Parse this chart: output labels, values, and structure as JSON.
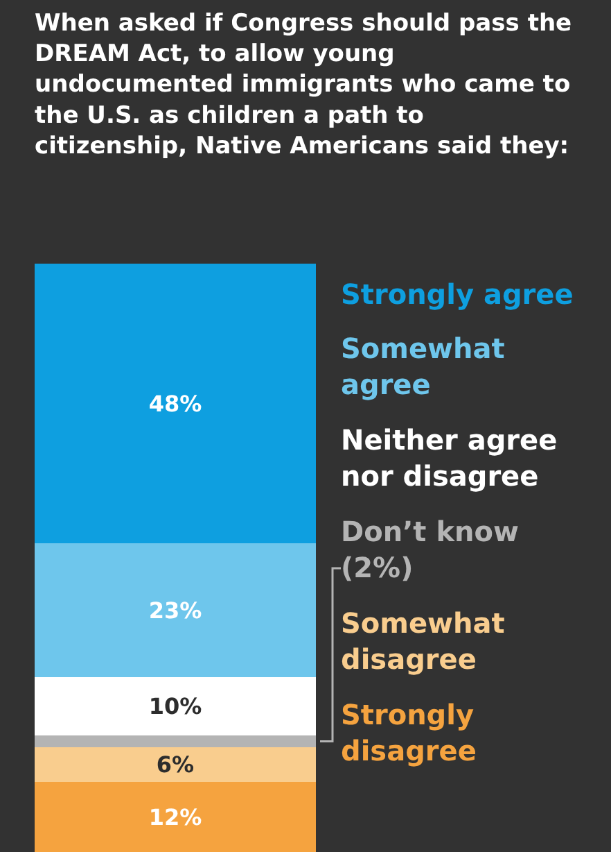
{
  "chart_data": {
    "type": "bar",
    "title": "When asked if Congress should pass the DREAM Act, to allow young undocumented immigrants who came to the U.S. as children a path to citizenship, Native Americans said they:",
    "categories": [
      null
    ],
    "stacked": true,
    "ylim": [
      0,
      101
    ],
    "series": [
      {
        "name": "Strongly disagree",
        "color": "#f5a33f",
        "values": [
          12
        ],
        "value_labels": [
          "12%"
        ]
      },
      {
        "name": "Somewhat disagree",
        "color": "#f9cd8e",
        "values": [
          6
        ],
        "value_labels": [
          "6%"
        ]
      },
      {
        "name": "Don’t know (2%)",
        "color": "#b4b4b4",
        "values": [
          2
        ],
        "value_labels": [
          null
        ]
      },
      {
        "name": "Neither agree nor disagree",
        "color": "#ffffff",
        "values": [
          10
        ],
        "value_labels": [
          "10%"
        ]
      },
      {
        "name": "Somewhat agree",
        "color": "#6ec6ec",
        "values": [
          23
        ],
        "value_labels": [
          "23%"
        ]
      },
      {
        "name": "Strongly agree",
        "color": "#0e9fe0",
        "values": [
          48
        ],
        "value_labels": [
          "48%"
        ]
      }
    ]
  }
}
